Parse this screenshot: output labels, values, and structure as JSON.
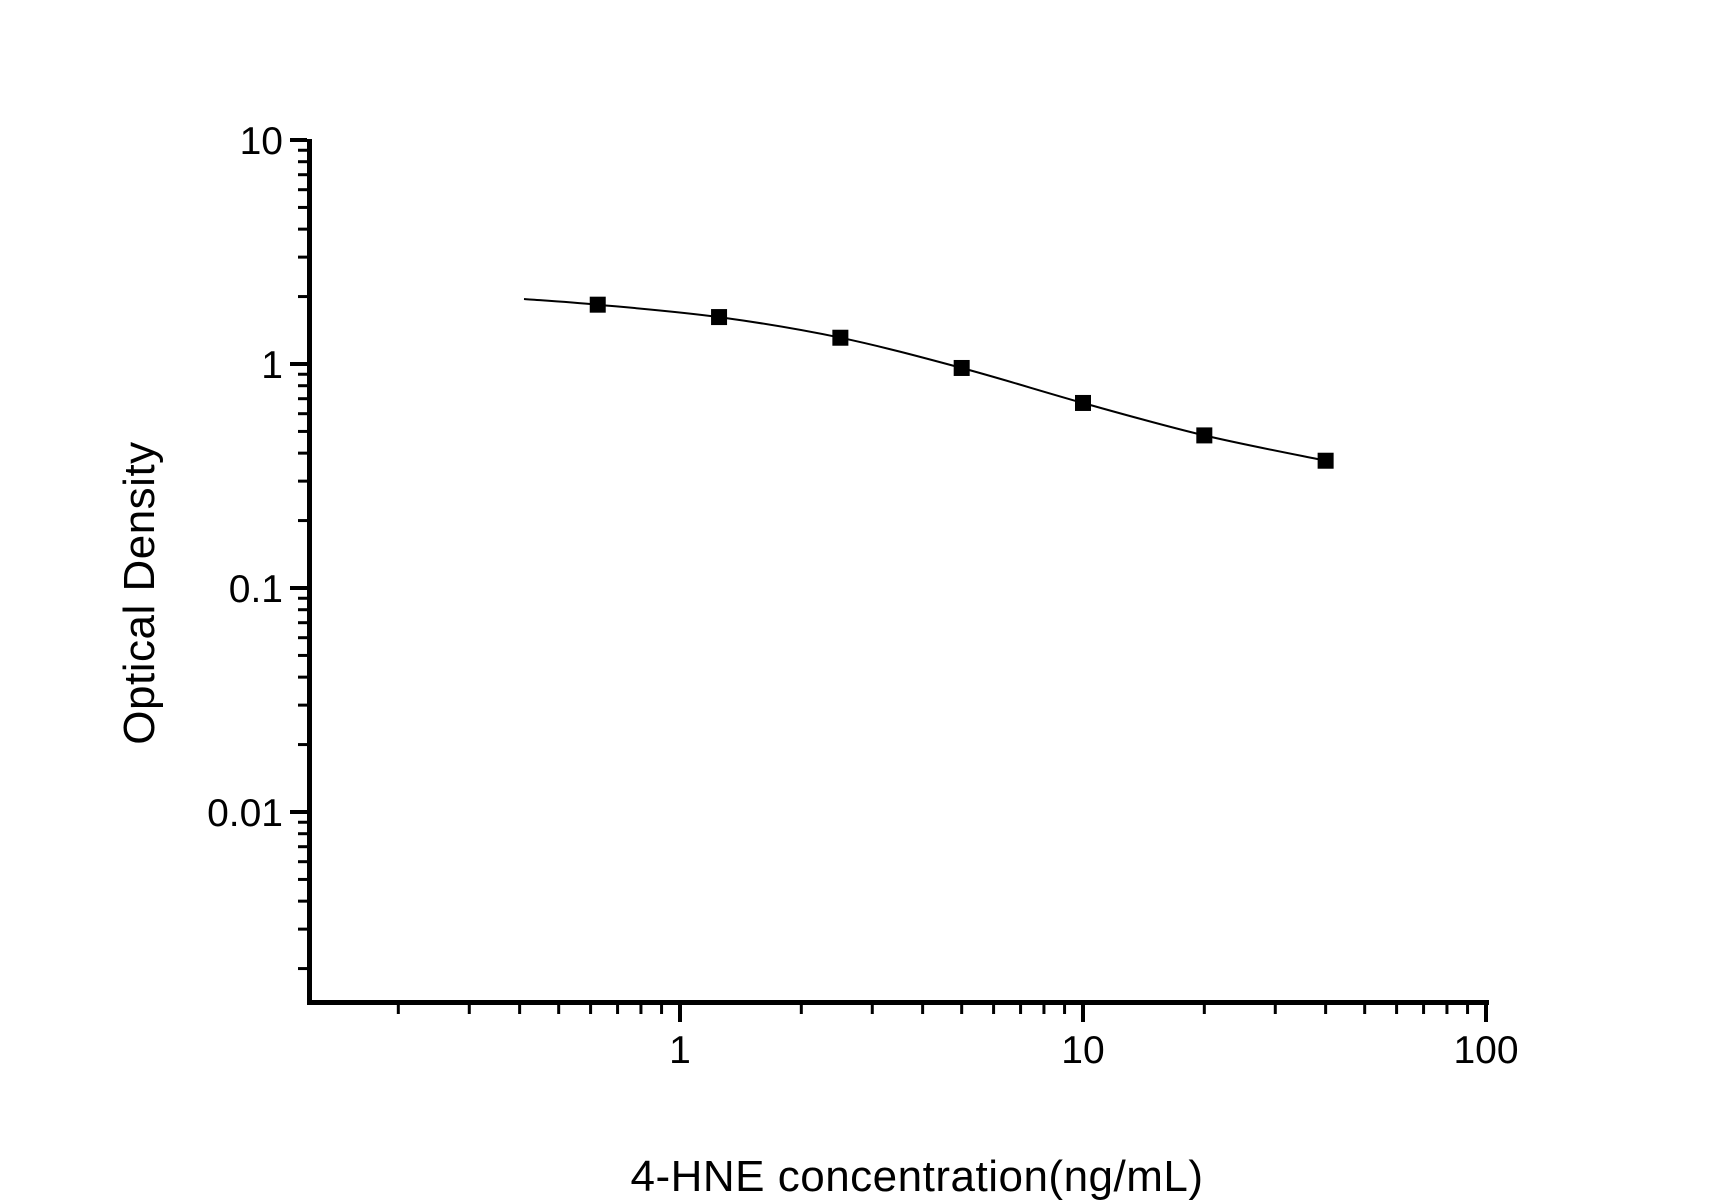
{
  "page": {
    "background": "#ffffff"
  },
  "chart_data": {
    "type": "line",
    "title": "",
    "xlabel": "4-HNE concentration(ng/mL)",
    "ylabel": "Optical Density",
    "x_scale": "log",
    "y_scale": "log",
    "xlim": [
      0.12,
      100
    ],
    "ylim": [
      0.0014,
      10
    ],
    "grid": false,
    "legend": false,
    "marker": "filled-square",
    "x": [
      0.625,
      1.25,
      2.5,
      5,
      10,
      20,
      40
    ],
    "y": [
      1.84,
      1.62,
      1.31,
      0.96,
      0.67,
      0.48,
      0.37
    ],
    "curve_extension_start": {
      "x": 0.41,
      "y": 1.95
    },
    "x_tick_labels": [
      {
        "value": 1,
        "label": "1"
      },
      {
        "value": 10,
        "label": "10"
      },
      {
        "value": 100,
        "label": "100"
      }
    ],
    "y_tick_labels": [
      {
        "value": 10,
        "label": "10"
      },
      {
        "value": 1,
        "label": "1"
      },
      {
        "value": 0.1,
        "label": "0.1"
      },
      {
        "value": 0.01,
        "label": "0.01"
      }
    ],
    "colors": {
      "line": "#000000",
      "marker": "#000000",
      "axis": "#000000",
      "text": "#000000",
      "background": "#ffffff"
    }
  }
}
